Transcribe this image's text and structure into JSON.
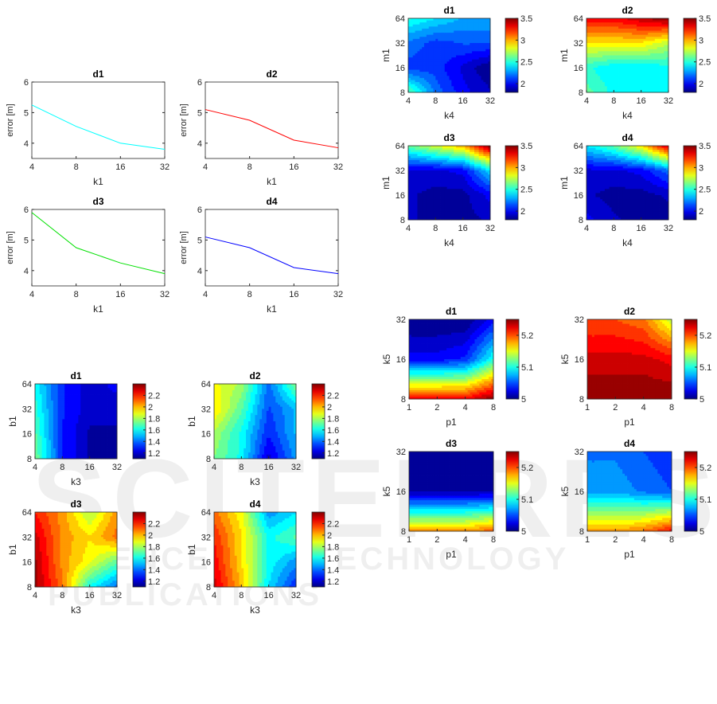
{
  "watermark": {
    "title": "SCITEPRESS",
    "subtitle": "SCIENCE AND TECHNOLOGY PUBLICATIONS"
  },
  "chart_data": [
    {
      "type": "line",
      "title": "d1",
      "xlabel": "k1",
      "ylabel": "error [m]",
      "x": [
        4,
        8,
        16,
        32
      ],
      "xticks": [
        "4",
        "8",
        "16",
        "32"
      ],
      "values": [
        5.25,
        4.55,
        4.0,
        3.8
      ],
      "ylim": [
        3.5,
        6
      ],
      "yticks": [
        4,
        5,
        6
      ],
      "color": "#00ffff"
    },
    {
      "type": "line",
      "title": "d2",
      "xlabel": "k1",
      "ylabel": "error [m]",
      "x": [
        4,
        8,
        16,
        32
      ],
      "xticks": [
        "4",
        "8",
        "16",
        "32"
      ],
      "values": [
        5.1,
        4.75,
        4.1,
        3.85
      ],
      "ylim": [
        3.5,
        6
      ],
      "yticks": [
        4,
        5,
        6
      ],
      "color": "#ff0000"
    },
    {
      "type": "line",
      "title": "d3",
      "xlabel": "k1",
      "ylabel": "error [m]",
      "x": [
        4,
        8,
        16,
        32
      ],
      "xticks": [
        "4",
        "8",
        "16",
        "32"
      ],
      "values": [
        5.9,
        4.75,
        4.25,
        3.9
      ],
      "ylim": [
        3.5,
        6
      ],
      "yticks": [
        4,
        5,
        6
      ],
      "color": "#00e000"
    },
    {
      "type": "line",
      "title": "d4",
      "xlabel": "k1",
      "ylabel": "error [m]",
      "x": [
        4,
        8,
        16,
        32
      ],
      "xticks": [
        "4",
        "8",
        "16",
        "32"
      ],
      "values": [
        5.1,
        4.75,
        4.1,
        3.9
      ],
      "ylim": [
        3.5,
        6
      ],
      "yticks": [
        4,
        5,
        6
      ],
      "color": "#0000ff"
    },
    {
      "type": "heatmap",
      "title": "d1",
      "xlabel": "k4",
      "ylabel": "m1",
      "xticks": [
        "4",
        "8",
        "16",
        "32"
      ],
      "yticks": [
        "8",
        "16",
        "32",
        "64"
      ],
      "values": [
        [
          2.6,
          2.2,
          2.0,
          1.9
        ],
        [
          2.1,
          2.1,
          1.95,
          1.8
        ],
        [
          2.2,
          2.1,
          2.15,
          2.15
        ],
        [
          2.5,
          2.4,
          2.3,
          2.3
        ]
      ],
      "clim": [
        1.8,
        3.5
      ],
      "cticks": [
        2,
        2.5,
        3,
        3.5
      ]
    },
    {
      "type": "heatmap",
      "title": "d2",
      "xlabel": "k4",
      "ylabel": "m1",
      "xticks": [
        "4",
        "8",
        "16",
        "32"
      ],
      "yticks": [
        "8",
        "16",
        "32",
        "64"
      ],
      "values": [
        [
          2.6,
          2.45,
          2.4,
          2.4
        ],
        [
          2.5,
          2.4,
          2.4,
          2.45
        ],
        [
          2.9,
          2.9,
          2.9,
          2.75
        ],
        [
          3.3,
          3.3,
          3.4,
          3.5
        ]
      ],
      "clim": [
        1.8,
        3.5
      ],
      "cticks": [
        2,
        2.5,
        3,
        3.5
      ]
    },
    {
      "type": "heatmap",
      "title": "d3",
      "xlabel": "k4",
      "ylabel": "m1",
      "xticks": [
        "4",
        "8",
        "16",
        "32"
      ],
      "yticks": [
        "8",
        "16",
        "32",
        "64"
      ],
      "values": [
        [
          1.9,
          1.85,
          1.85,
          1.9
        ],
        [
          1.9,
          1.85,
          1.85,
          2.0
        ],
        [
          1.95,
          1.95,
          2.0,
          2.4
        ],
        [
          2.6,
          2.8,
          3.0,
          3.5
        ]
      ],
      "clim": [
        1.8,
        3.5
      ],
      "cticks": [
        2,
        2.5,
        3,
        3.5
      ]
    },
    {
      "type": "heatmap",
      "title": "d4",
      "xlabel": "k4",
      "ylabel": "m1",
      "xticks": [
        "4",
        "8",
        "16",
        "32"
      ],
      "yticks": [
        "8",
        "16",
        "32",
        "64"
      ],
      "values": [
        [
          2.0,
          1.9,
          1.85,
          1.85
        ],
        [
          1.9,
          1.85,
          1.85,
          1.9
        ],
        [
          1.95,
          1.95,
          2.0,
          2.2
        ],
        [
          2.4,
          2.6,
          2.9,
          3.4
        ]
      ],
      "clim": [
        1.8,
        3.5
      ],
      "cticks": [
        2,
        2.5,
        3,
        3.5
      ]
    },
    {
      "type": "heatmap",
      "title": "d1",
      "xlabel": "k3",
      "ylabel": "b1",
      "xticks": [
        "4",
        "8",
        "16",
        "32"
      ],
      "yticks": [
        "8",
        "16",
        "32",
        "64"
      ],
      "values": [
        [
          1.75,
          1.3,
          1.15,
          1.12
        ],
        [
          1.7,
          1.3,
          1.15,
          1.15
        ],
        [
          1.65,
          1.3,
          1.2,
          1.2
        ],
        [
          1.6,
          1.3,
          1.2,
          1.25
        ]
      ],
      "clim": [
        1.1,
        2.4
      ],
      "cticks": [
        1.2,
        1.4,
        1.6,
        1.8,
        2,
        2.2
      ]
    },
    {
      "type": "heatmap",
      "title": "d2",
      "xlabel": "k3",
      "ylabel": "b1",
      "xticks": [
        "4",
        "8",
        "16",
        "32"
      ],
      "yticks": [
        "8",
        "16",
        "32",
        "64"
      ],
      "values": [
        [
          1.75,
          1.6,
          1.2,
          1.45
        ],
        [
          1.8,
          1.6,
          1.3,
          1.5
        ],
        [
          1.95,
          1.7,
          1.35,
          1.5
        ],
        [
          1.9,
          1.8,
          1.4,
          1.75
        ]
      ],
      "clim": [
        1.1,
        2.4
      ],
      "cticks": [
        1.2,
        1.4,
        1.6,
        1.8,
        2,
        2.2
      ]
    },
    {
      "type": "heatmap",
      "title": "d3",
      "xlabel": "k3",
      "ylabel": "b1",
      "xticks": [
        "4",
        "8",
        "16",
        "32"
      ],
      "yticks": [
        "8",
        "16",
        "32",
        "64"
      ],
      "values": [
        [
          2.35,
          2.1,
          1.6,
          1.4
        ],
        [
          2.35,
          2.05,
          1.9,
          1.7
        ],
        [
          2.3,
          2.05,
          1.95,
          2.1
        ],
        [
          2.2,
          2.05,
          1.8,
          2.05
        ]
      ],
      "clim": [
        1.1,
        2.4
      ],
      "cticks": [
        1.2,
        1.4,
        1.6,
        1.8,
        2,
        2.2
      ]
    },
    {
      "type": "heatmap",
      "title": "d4",
      "xlabel": "k3",
      "ylabel": "b1",
      "xticks": [
        "4",
        "8",
        "16",
        "32"
      ],
      "yticks": [
        "8",
        "16",
        "32",
        "64"
      ],
      "values": [
        [
          2.3,
          2.0,
          1.55,
          1.3
        ],
        [
          2.25,
          1.95,
          1.6,
          1.45
        ],
        [
          2.2,
          1.95,
          1.6,
          1.7
        ],
        [
          2.1,
          1.9,
          1.45,
          1.55
        ]
      ],
      "clim": [
        1.1,
        2.4
      ],
      "cticks": [
        1.2,
        1.4,
        1.6,
        1.8,
        2,
        2.2
      ]
    },
    {
      "type": "heatmap",
      "title": "d1",
      "xlabel": "p1",
      "ylabel": "k5",
      "xticks": [
        "1",
        "2",
        "4",
        "8"
      ],
      "yticks": [
        "8",
        "16",
        "32"
      ],
      "values": [
        [
          5.22,
          5.22,
          5.22,
          5.25
        ],
        [
          5.03,
          5.03,
          5.04,
          5.1
        ],
        [
          5.0,
          5.0,
          5.0,
          5.03
        ]
      ],
      "clim": [
        5,
        5.25
      ],
      "cticks": [
        5,
        5.1,
        5.2
      ]
    },
    {
      "type": "heatmap",
      "title": "d2",
      "xlabel": "p1",
      "ylabel": "k5",
      "xticks": [
        "1",
        "2",
        "4",
        "8"
      ],
      "yticks": [
        "8",
        "16",
        "32"
      ],
      "values": [
        [
          5.25,
          5.25,
          5.25,
          5.25
        ],
        [
          5.23,
          5.23,
          5.23,
          5.22
        ],
        [
          5.2,
          5.2,
          5.19,
          5.14
        ]
      ],
      "clim": [
        5,
        5.25
      ],
      "cticks": [
        5,
        5.1,
        5.2
      ]
    },
    {
      "type": "heatmap",
      "title": "d3",
      "xlabel": "p1",
      "ylabel": "k5",
      "xticks": [
        "1",
        "2",
        "4",
        "8"
      ],
      "yticks": [
        "8",
        "16",
        "32"
      ],
      "values": [
        [
          5.18,
          5.18,
          5.18,
          5.2
        ],
        [
          5.01,
          5.01,
          5.01,
          5.01
        ],
        [
          5.0,
          5.0,
          5.0,
          5.01
        ]
      ],
      "clim": [
        5,
        5.25
      ],
      "cticks": [
        5,
        5.1,
        5.2
      ]
    },
    {
      "type": "heatmap",
      "title": "d4",
      "xlabel": "p1",
      "ylabel": "k5",
      "xticks": [
        "1",
        "2",
        "4",
        "8"
      ],
      "yticks": [
        "8",
        "16",
        "32"
      ],
      "values": [
        [
          5.18,
          5.18,
          5.19,
          5.22
        ],
        [
          5.07,
          5.07,
          5.06,
          5.05
        ],
        [
          5.06,
          5.06,
          5.05,
          5.04
        ]
      ],
      "clim": [
        5,
        5.25
      ],
      "cticks": [
        5,
        5.1,
        5.2
      ]
    }
  ]
}
